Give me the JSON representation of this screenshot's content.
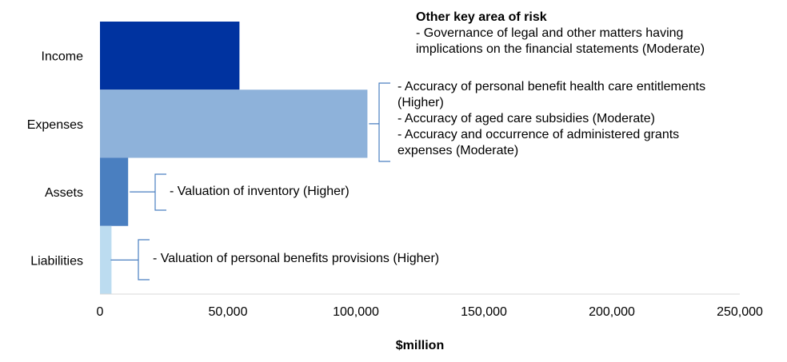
{
  "chart_data": {
    "type": "bar",
    "orientation": "horizontal",
    "categories": [
      "Income",
      "Expenses",
      "Assets",
      "Liabilities"
    ],
    "values": [
      54500,
      104500,
      11000,
      4500
    ],
    "colors": [
      "#0033a0",
      "#8eb2da",
      "#4a7fc0",
      "#bcdcf0"
    ],
    "xlabel": "$million",
    "xlim": [
      0,
      250000
    ],
    "xticks": [
      "0",
      "50,000",
      "100,000",
      "150,000",
      "200,000",
      "250,000"
    ],
    "grid": false,
    "annotations": [
      {
        "category": "Expenses",
        "lines": [
          "- Accuracy of personal benefit health care entitlements",
          "(Higher)",
          "- Accuracy of aged care subsidies (Moderate)",
          "- Accuracy and occurrence of administered grants",
          "expenses (Moderate)"
        ]
      },
      {
        "category": "Assets",
        "lines": [
          "- Valuation of inventory (Higher)"
        ]
      },
      {
        "category": "Liabilities",
        "lines": [
          "- Valuation of personal benefits provisions (Higher)"
        ]
      }
    ],
    "other_risk": {
      "title": "Other key area of risk",
      "lines": [
        "- Governance of legal and other matters having",
        "implications on the financial statements (Moderate)"
      ]
    }
  }
}
